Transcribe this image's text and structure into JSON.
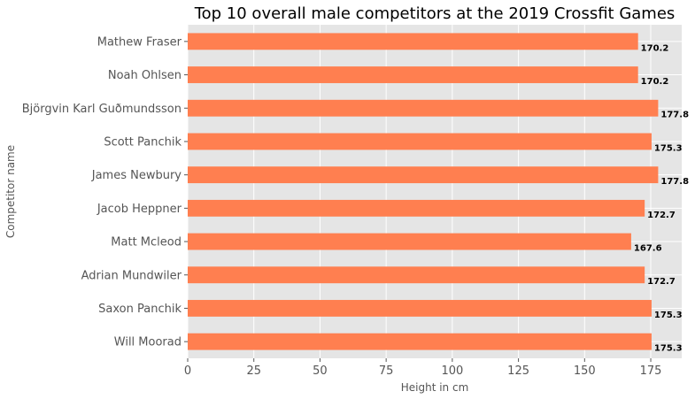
{
  "chart_data": {
    "type": "bar",
    "orientation": "horizontal",
    "title": "Top 10 overall male competitors at the 2019 Crossfit Games",
    "xlabel": "Height in cm",
    "ylabel": "Competitor name",
    "categories": [
      "Mathew Fraser",
      "Noah Ohlsen",
      "Björgvin Karl Guðmundsson",
      "Scott Panchik",
      "James Newbury",
      "Jacob Heppner",
      "Matt Mcleod",
      "Adrian Mundwiler",
      "Saxon Panchik",
      "Will Moorad"
    ],
    "values": [
      170.2,
      170.2,
      177.8,
      175.3,
      177.8,
      172.7,
      167.6,
      172.7,
      175.3,
      175.3
    ],
    "data_labels": [
      "170.2",
      "170.2",
      "177.8",
      "175.3",
      "177.8",
      "172.7",
      "167.6",
      "172.7",
      "175.3",
      "175.3"
    ],
    "xticks": [
      0,
      25,
      50,
      75,
      100,
      125,
      150,
      175
    ],
    "xlim": [
      0,
      186.7
    ],
    "grid": true,
    "style": "ggplot",
    "colors": {
      "bar": "#FF7F50",
      "background": "#E5E5E5",
      "grid": "#FFFFFF"
    }
  }
}
